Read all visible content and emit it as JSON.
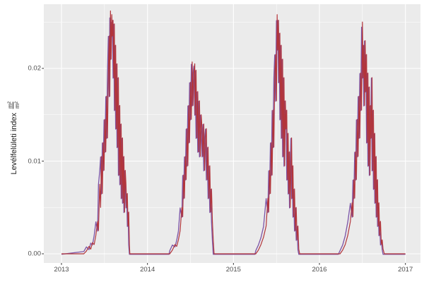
{
  "figure": {
    "background": "#ffffff",
    "panel_background": "#ebebeb",
    "gridline_color": "#ffffff",
    "tick_color": "#333333",
    "tick_label_color": "#4d4d4d",
    "axis_title_color": "#1a1a1a"
  },
  "axis_y": {
    "title_text": "Levélfelületi index",
    "frac_numerator": "m²",
    "frac_denominator": "m²"
  },
  "chart_data": {
    "type": "line",
    "title": "",
    "xlabel": "",
    "ylabel": "Levélfelületi index (m²/m²)",
    "legend": "none",
    "grid": true,
    "xlim": [
      2012.79,
      2017.18
    ],
    "ylim": [
      -0.001,
      0.0269
    ],
    "x_tick_values": [
      2013,
      2014,
      2015,
      2016,
      2017
    ],
    "x_tick_labels": [
      "2013",
      "2014",
      "2015",
      "2016",
      "2017"
    ],
    "y_tick_values": [
      0,
      0.01,
      0.02
    ],
    "y_tick_labels": [
      "0.00",
      "0.01",
      "0.02"
    ],
    "x_minor": [
      2013.5,
      2014.5,
      2015.5,
      2016.5
    ],
    "y_minor": [
      0.005,
      0.015,
      0.025
    ],
    "series": [
      {
        "name": "red",
        "color": "#b2353b"
      },
      {
        "name": "purple",
        "color": "#7e57a8"
      }
    ],
    "points": [
      [
        2013.0,
        0,
        0
      ],
      [
        2013.26,
        0,
        0.0003
      ],
      [
        2013.29,
        0.0003,
        0.0008
      ],
      [
        2013.32,
        0.0008,
        0.0005
      ],
      [
        2013.34,
        0.0005,
        0.0012
      ],
      [
        2013.36,
        0.0012,
        0.001
      ],
      [
        2013.38,
        0.001,
        0.002
      ],
      [
        2013.4,
        0.002,
        0.0035
      ],
      [
        2013.42,
        0.0035,
        0.0025
      ],
      [
        2013.43,
        0.0025,
        0.0075
      ],
      [
        2013.445,
        0.0075,
        0.009
      ],
      [
        2013.455,
        0.005,
        0.0105
      ],
      [
        2013.465,
        0.0105,
        0.0065
      ],
      [
        2013.475,
        0.0065,
        0.012
      ],
      [
        2013.485,
        0.012,
        0.009
      ],
      [
        2013.495,
        0.009,
        0.0145
      ],
      [
        2013.505,
        0.0145,
        0.011
      ],
      [
        2013.515,
        0.011,
        0.017
      ],
      [
        2013.525,
        0.017,
        0.0125
      ],
      [
        2013.535,
        0.0125,
        0.0195
      ],
      [
        2013.545,
        0.0195,
        0.0235
      ],
      [
        2013.555,
        0.0235,
        0.017
      ],
      [
        2013.562,
        0.017,
        0.0255
      ],
      [
        2013.57,
        0.0262,
        0.021
      ],
      [
        2013.578,
        0.021,
        0.025
      ],
      [
        2013.585,
        0.0258,
        0.0235
      ],
      [
        2013.592,
        0.0235,
        0.0252
      ],
      [
        2013.6,
        0.0252,
        0.019
      ],
      [
        2013.608,
        0.019,
        0.0248
      ],
      [
        2013.615,
        0.0248,
        0.0155
      ],
      [
        2013.622,
        0.0155,
        0.0225
      ],
      [
        2013.63,
        0.0225,
        0.0135
      ],
      [
        2013.638,
        0.0135,
        0.0205
      ],
      [
        2013.646,
        0.0205,
        0.0115
      ],
      [
        2013.654,
        0.0115,
        0.019
      ],
      [
        2013.662,
        0.019,
        0.0085
      ],
      [
        2013.67,
        0.0085,
        0.016
      ],
      [
        2013.678,
        0.016,
        0.0075
      ],
      [
        2013.686,
        0.0075,
        0.014
      ],
      [
        2013.694,
        0.014,
        0.006
      ],
      [
        2013.702,
        0.006,
        0.0125
      ],
      [
        2013.71,
        0.0125,
        0.0055
      ],
      [
        2013.718,
        0.0055,
        0.0105
      ],
      [
        2013.726,
        0.0105,
        0.0045
      ],
      [
        2013.734,
        0.0045,
        0.009
      ],
      [
        2013.742,
        0.009,
        0.0075
      ],
      [
        2013.75,
        0.0075,
        0.005
      ],
      [
        2013.758,
        0.005,
        0.0065
      ],
      [
        2013.766,
        0.0065,
        0.003
      ],
      [
        2013.774,
        0.003,
        0.0045
      ],
      [
        2013.782,
        0.0045,
        0.001
      ],
      [
        2013.79,
        0.001,
        0
      ],
      [
        2013.795,
        0,
        0
      ],
      [
        2014.25,
        0,
        0
      ],
      [
        2014.26,
        0,
        0.0004
      ],
      [
        2014.29,
        0.0004,
        0.001
      ],
      [
        2014.32,
        0.001,
        0.0008
      ],
      [
        2014.34,
        0.0008,
        0.0015
      ],
      [
        2014.36,
        0.0015,
        0.0025
      ],
      [
        2014.38,
        0.0025,
        0.005
      ],
      [
        2014.4,
        0.005,
        0.004
      ],
      [
        2014.41,
        0.004,
        0.0085
      ],
      [
        2014.42,
        0.0085,
        0.006
      ],
      [
        2014.43,
        0.006,
        0.0105
      ],
      [
        2014.44,
        0.0105,
        0.008
      ],
      [
        2014.45,
        0.008,
        0.0135
      ],
      [
        2014.46,
        0.0135,
        0.0095
      ],
      [
        2014.47,
        0.0095,
        0.016
      ],
      [
        2014.48,
        0.016,
        0.012
      ],
      [
        2014.49,
        0.012,
        0.0185
      ],
      [
        2014.5,
        0.0185,
        0.0145
      ],
      [
        2014.51,
        0.0145,
        0.0205
      ],
      [
        2014.52,
        0.0207,
        0.016
      ],
      [
        2014.53,
        0.016,
        0.0195
      ],
      [
        2014.54,
        0.0195,
        0.0203
      ],
      [
        2014.55,
        0.0205,
        0.015
      ],
      [
        2014.555,
        0.015,
        0.0198
      ],
      [
        2014.565,
        0.0198,
        0.0125
      ],
      [
        2014.575,
        0.0125,
        0.0175
      ],
      [
        2014.585,
        0.0175,
        0.011
      ],
      [
        2014.595,
        0.011,
        0.0165
      ],
      [
        2014.605,
        0.0165,
        0.0105
      ],
      [
        2014.615,
        0.0105,
        0.015
      ],
      [
        2014.625,
        0.015,
        0.0135
      ],
      [
        2014.635,
        0.0135,
        0.0105
      ],
      [
        2014.645,
        0.0105,
        0.014
      ],
      [
        2014.655,
        0.014,
        0.009
      ],
      [
        2014.665,
        0.009,
        0.0125
      ],
      [
        2014.675,
        0.0125,
        0.0135
      ],
      [
        2014.685,
        0.0135,
        0.008
      ],
      [
        2014.695,
        0.008,
        0.0115
      ],
      [
        2014.705,
        0.0115,
        0.006
      ],
      [
        2014.715,
        0.006,
        0.0095
      ],
      [
        2014.725,
        0.0095,
        0.0045
      ],
      [
        2014.735,
        0.0045,
        0.007
      ],
      [
        2014.745,
        0.007,
        0.0035
      ],
      [
        2014.755,
        0.0035,
        0.0015
      ],
      [
        2014.765,
        0.0015,
        0
      ],
      [
        2014.775,
        0,
        0
      ],
      [
        2015.25,
        0,
        0
      ],
      [
        2015.26,
        0,
        0.0004
      ],
      [
        2015.29,
        0.0004,
        0.001
      ],
      [
        2015.32,
        0.001,
        0.0018
      ],
      [
        2015.35,
        0.0018,
        0.003
      ],
      [
        2015.38,
        0.003,
        0.006
      ],
      [
        2015.4,
        0.006,
        0.0045
      ],
      [
        2015.41,
        0.0045,
        0.009
      ],
      [
        2015.42,
        0.009,
        0.0065
      ],
      [
        2015.43,
        0.0065,
        0.012
      ],
      [
        2015.44,
        0.012,
        0.0085
      ],
      [
        2015.45,
        0.0085,
        0.0155
      ],
      [
        2015.46,
        0.0155,
        0.0115
      ],
      [
        2015.47,
        0.0115,
        0.019
      ],
      [
        2015.48,
        0.019,
        0.0215
      ],
      [
        2015.49,
        0.0215,
        0.0165
      ],
      [
        2015.5,
        0.0165,
        0.0252
      ],
      [
        2015.508,
        0.0258,
        0.022
      ],
      [
        2015.516,
        0.022,
        0.0252
      ],
      [
        2015.524,
        0.0252,
        0.0185
      ],
      [
        2015.532,
        0.0185,
        0.0238
      ],
      [
        2015.54,
        0.0238,
        0.0145
      ],
      [
        2015.548,
        0.0145,
        0.0225
      ],
      [
        2015.556,
        0.0225,
        0.0125
      ],
      [
        2015.564,
        0.0125,
        0.021
      ],
      [
        2015.572,
        0.021,
        0.0105
      ],
      [
        2015.58,
        0.0105,
        0.019
      ],
      [
        2015.588,
        0.019,
        0.0095
      ],
      [
        2015.596,
        0.0095,
        0.0165
      ],
      [
        2015.604,
        0.0165,
        0.0135
      ],
      [
        2015.612,
        0.0135,
        0.0155
      ],
      [
        2015.62,
        0.0155,
        0.008
      ],
      [
        2015.628,
        0.008,
        0.013
      ],
      [
        2015.636,
        0.013,
        0.0065
      ],
      [
        2015.644,
        0.0065,
        0.011
      ],
      [
        2015.652,
        0.011,
        0.005
      ],
      [
        2015.66,
        0.005,
        0.009
      ],
      [
        2015.668,
        0.009,
        0.0125
      ],
      [
        2015.676,
        0.0125,
        0.006
      ],
      [
        2015.684,
        0.006,
        0.0095
      ],
      [
        2015.692,
        0.0095,
        0.004
      ],
      [
        2015.7,
        0.004,
        0.007
      ],
      [
        2015.71,
        0.007,
        0.0025
      ],
      [
        2015.72,
        0.0025,
        0.005
      ],
      [
        2015.73,
        0.005,
        0.0015
      ],
      [
        2015.74,
        0.0015,
        0.003
      ],
      [
        2015.75,
        0.003,
        0.0005
      ],
      [
        2015.76,
        0.0005,
        0
      ],
      [
        2015.77,
        0,
        0
      ],
      [
        2016.22,
        0,
        0
      ],
      [
        2016.24,
        0,
        0.0004
      ],
      [
        2016.27,
        0.0004,
        0.001
      ],
      [
        2016.3,
        0.001,
        0.002
      ],
      [
        2016.33,
        0.002,
        0.0035
      ],
      [
        2016.36,
        0.0035,
        0.0055
      ],
      [
        2016.38,
        0.0055,
        0.004
      ],
      [
        2016.39,
        0.004,
        0.008
      ],
      [
        2016.4,
        0.008,
        0.006
      ],
      [
        2016.41,
        0.006,
        0.011
      ],
      [
        2016.42,
        0.011,
        0.008
      ],
      [
        2016.43,
        0.008,
        0.0145
      ],
      [
        2016.44,
        0.0145,
        0.0105
      ],
      [
        2016.45,
        0.0105,
        0.017
      ],
      [
        2016.46,
        0.017,
        0.0125
      ],
      [
        2016.47,
        0.0125,
        0.0195
      ],
      [
        2016.48,
        0.0195,
        0.0155
      ],
      [
        2016.49,
        0.0155,
        0.0245
      ],
      [
        2016.5,
        0.025,
        0.019
      ],
      [
        2016.508,
        0.019,
        0.0225
      ],
      [
        2016.516,
        0.0225,
        0.016
      ],
      [
        2016.524,
        0.016,
        0.023
      ],
      [
        2016.532,
        0.023,
        0.0175
      ],
      [
        2016.54,
        0.0175,
        0.0215
      ],
      [
        2016.548,
        0.0215,
        0.012
      ],
      [
        2016.556,
        0.012,
        0.0195
      ],
      [
        2016.564,
        0.0195,
        0.0095
      ],
      [
        2016.572,
        0.0095,
        0.018
      ],
      [
        2016.58,
        0.018,
        0.0085
      ],
      [
        2016.588,
        0.0085,
        0.016
      ],
      [
        2016.596,
        0.016,
        0.0125
      ],
      [
        2016.604,
        0.0125,
        0.019
      ],
      [
        2016.612,
        0.019,
        0.009
      ],
      [
        2016.62,
        0.009,
        0.0155
      ],
      [
        2016.628,
        0.0155,
        0.007
      ],
      [
        2016.636,
        0.007,
        0.013
      ],
      [
        2016.644,
        0.013,
        0.0055
      ],
      [
        2016.652,
        0.0055,
        0.0105
      ],
      [
        2016.66,
        0.0105,
        0.004
      ],
      [
        2016.668,
        0.004,
        0.008
      ],
      [
        2016.676,
        0.008,
        0.003
      ],
      [
        2016.684,
        0.003,
        0.0055
      ],
      [
        2016.692,
        0.0055,
        0.002
      ],
      [
        2016.7,
        0.002,
        0.0035
      ],
      [
        2016.71,
        0.0035,
        0.001
      ],
      [
        2016.72,
        0.001,
        0.0015
      ],
      [
        2016.73,
        0.0015,
        0.0005
      ],
      [
        2016.74,
        0.0005,
        0
      ],
      [
        2016.755,
        0,
        0
      ],
      [
        2017.0,
        0,
        0
      ]
    ]
  }
}
